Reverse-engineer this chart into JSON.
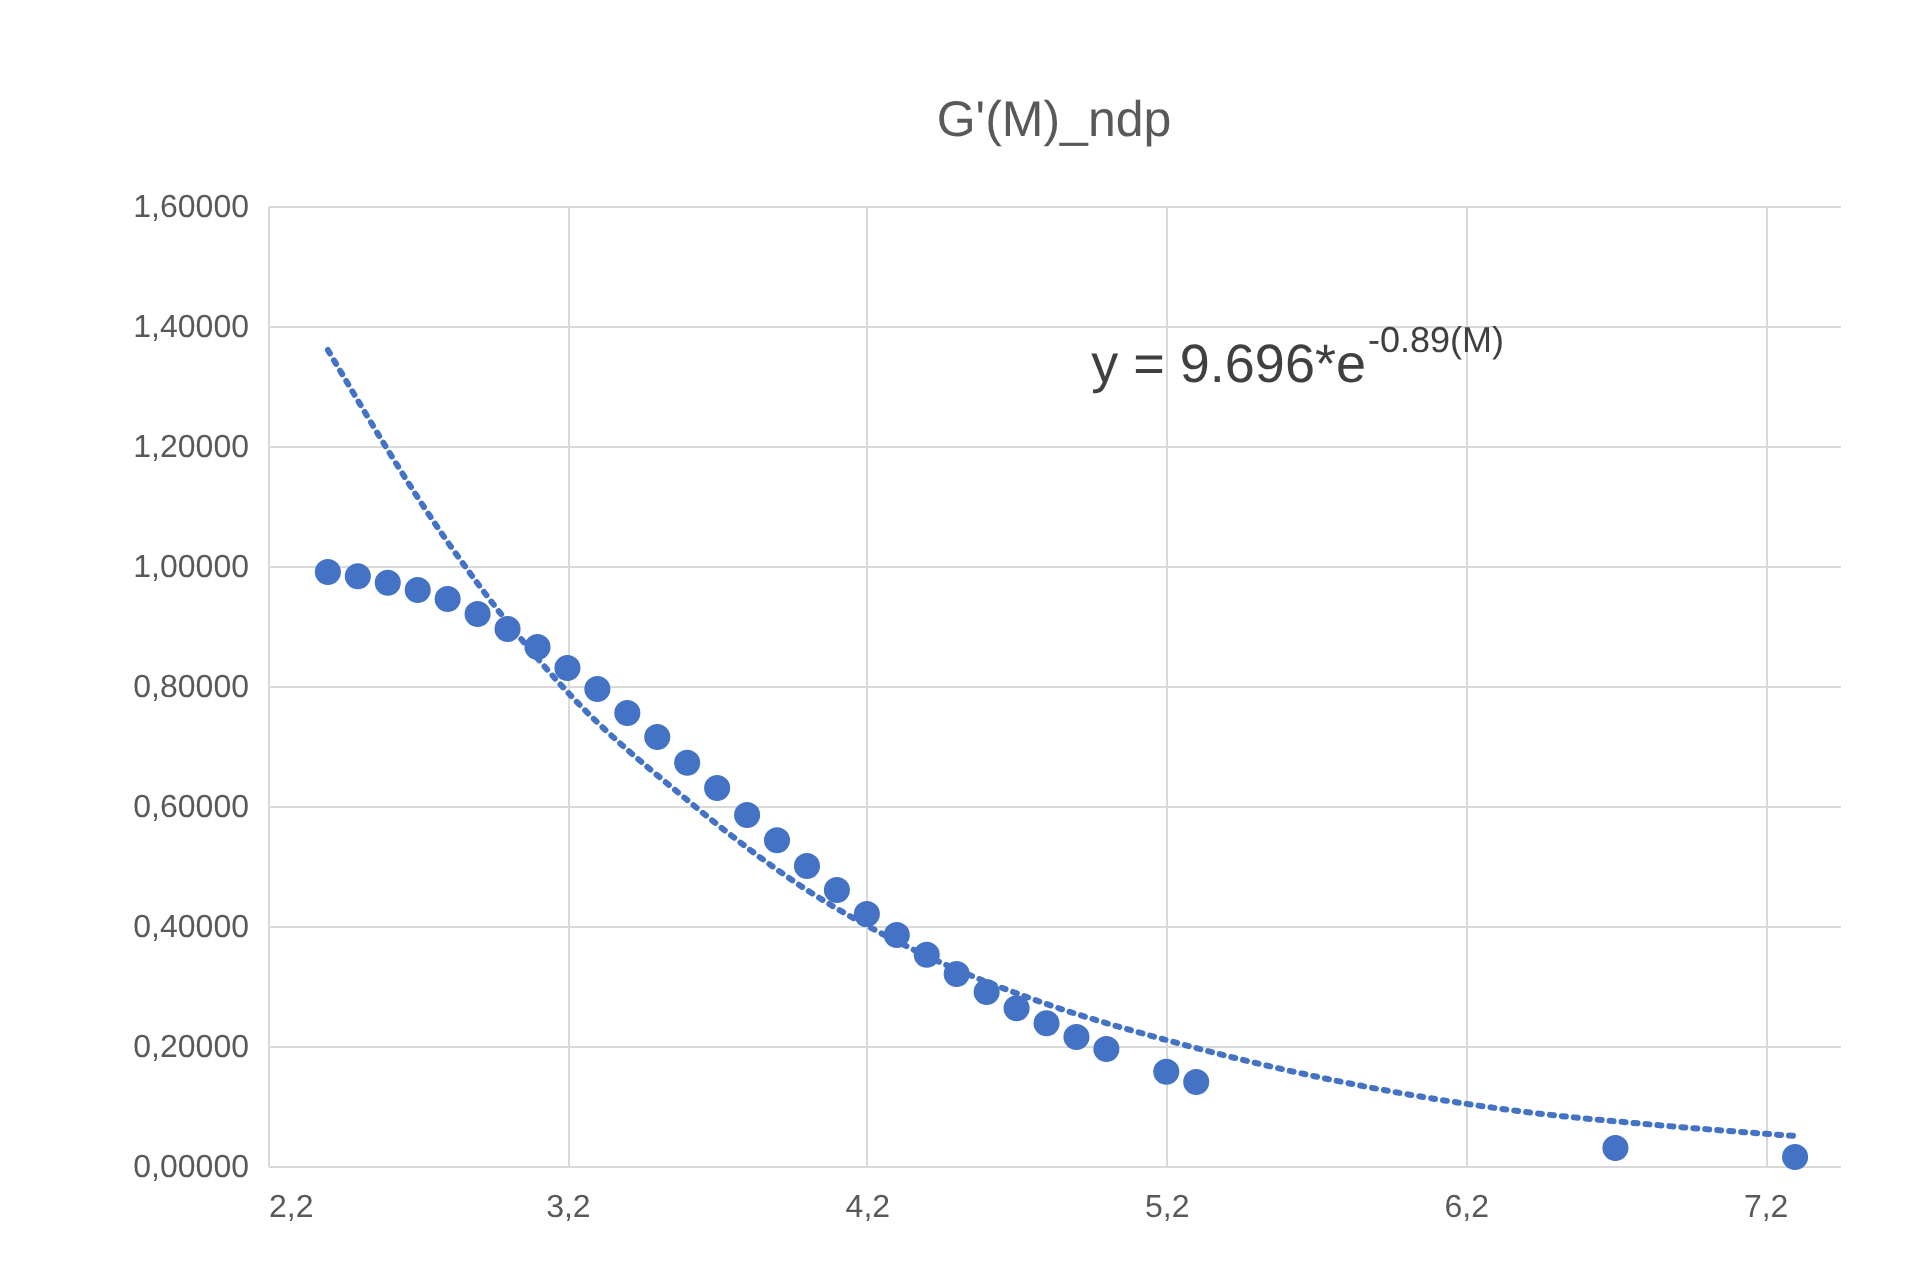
{
  "chart_data": {
    "type": "scatter",
    "title": "G'(M)_ndp",
    "annotations": [
      "y = 9.696*e$^{-0.89(M)}$"
    ],
    "xlim": [
      2.2,
      7.45
    ],
    "ylim": [
      0,
      1.6
    ],
    "xticks": [
      {
        "value": 2.2,
        "label": "2,2"
      },
      {
        "value": 3.2,
        "label": "3,2"
      },
      {
        "value": 4.2,
        "label": "4,2"
      },
      {
        "value": 5.2,
        "label": "5,2"
      },
      {
        "value": 6.2,
        "label": "6,2"
      },
      {
        "value": 7.2,
        "label": "7,2"
      }
    ],
    "yticks": [
      {
        "value": 0,
        "label": "0,00000"
      },
      {
        "value": 0.2,
        "label": "0,20000"
      },
      {
        "value": 0.4,
        "label": "0,40000"
      },
      {
        "value": 0.6,
        "label": "0,60000"
      },
      {
        "value": 0.8,
        "label": "0,80000"
      },
      {
        "value": 1.0,
        "label": "1,00000"
      },
      {
        "value": 1.2,
        "label": "1,20000"
      },
      {
        "value": 1.4,
        "label": "1,40000"
      },
      {
        "value": 1.6,
        "label": "1,60000"
      }
    ],
    "grid": true,
    "series": [
      {
        "color": "#4472c4",
        "marker": "circle",
        "x": [
          2.4,
          2.5,
          2.6,
          2.7,
          2.8,
          2.9,
          3.0,
          3.1,
          3.2,
          3.3,
          3.4,
          3.5,
          3.6,
          3.7,
          3.8,
          3.9,
          4.0,
          4.1,
          4.2,
          4.3,
          4.4,
          4.5,
          4.6,
          4.7,
          4.8,
          4.9,
          5.0,
          5.2,
          5.3,
          6.7,
          7.3
        ],
        "values": [
          0.99,
          0.983,
          0.972,
          0.96,
          0.945,
          0.92,
          0.895,
          0.865,
          0.83,
          0.795,
          0.755,
          0.715,
          0.672,
          0.63,
          0.585,
          0.543,
          0.5,
          0.46,
          0.42,
          0.385,
          0.352,
          0.32,
          0.29,
          0.263,
          0.238,
          0.215,
          0.195,
          0.157,
          0.14,
          0.03,
          0.015
        ]
      },
      {
        "type": "line",
        "color": "#4472c4",
        "line_style": "dotted",
        "marker": "none",
        "x": [
          2.4,
          2.8,
          3.2,
          3.6,
          4.0,
          4.4,
          4.8,
          5.2,
          5.6,
          6.0,
          6.4,
          6.8,
          7.3
        ],
        "values": [
          1.36,
          1.04,
          0.79,
          0.61,
          0.46,
          0.35,
          0.27,
          0.21,
          0.16,
          0.12,
          0.09,
          0.07,
          0.05
        ]
      }
    ]
  }
}
